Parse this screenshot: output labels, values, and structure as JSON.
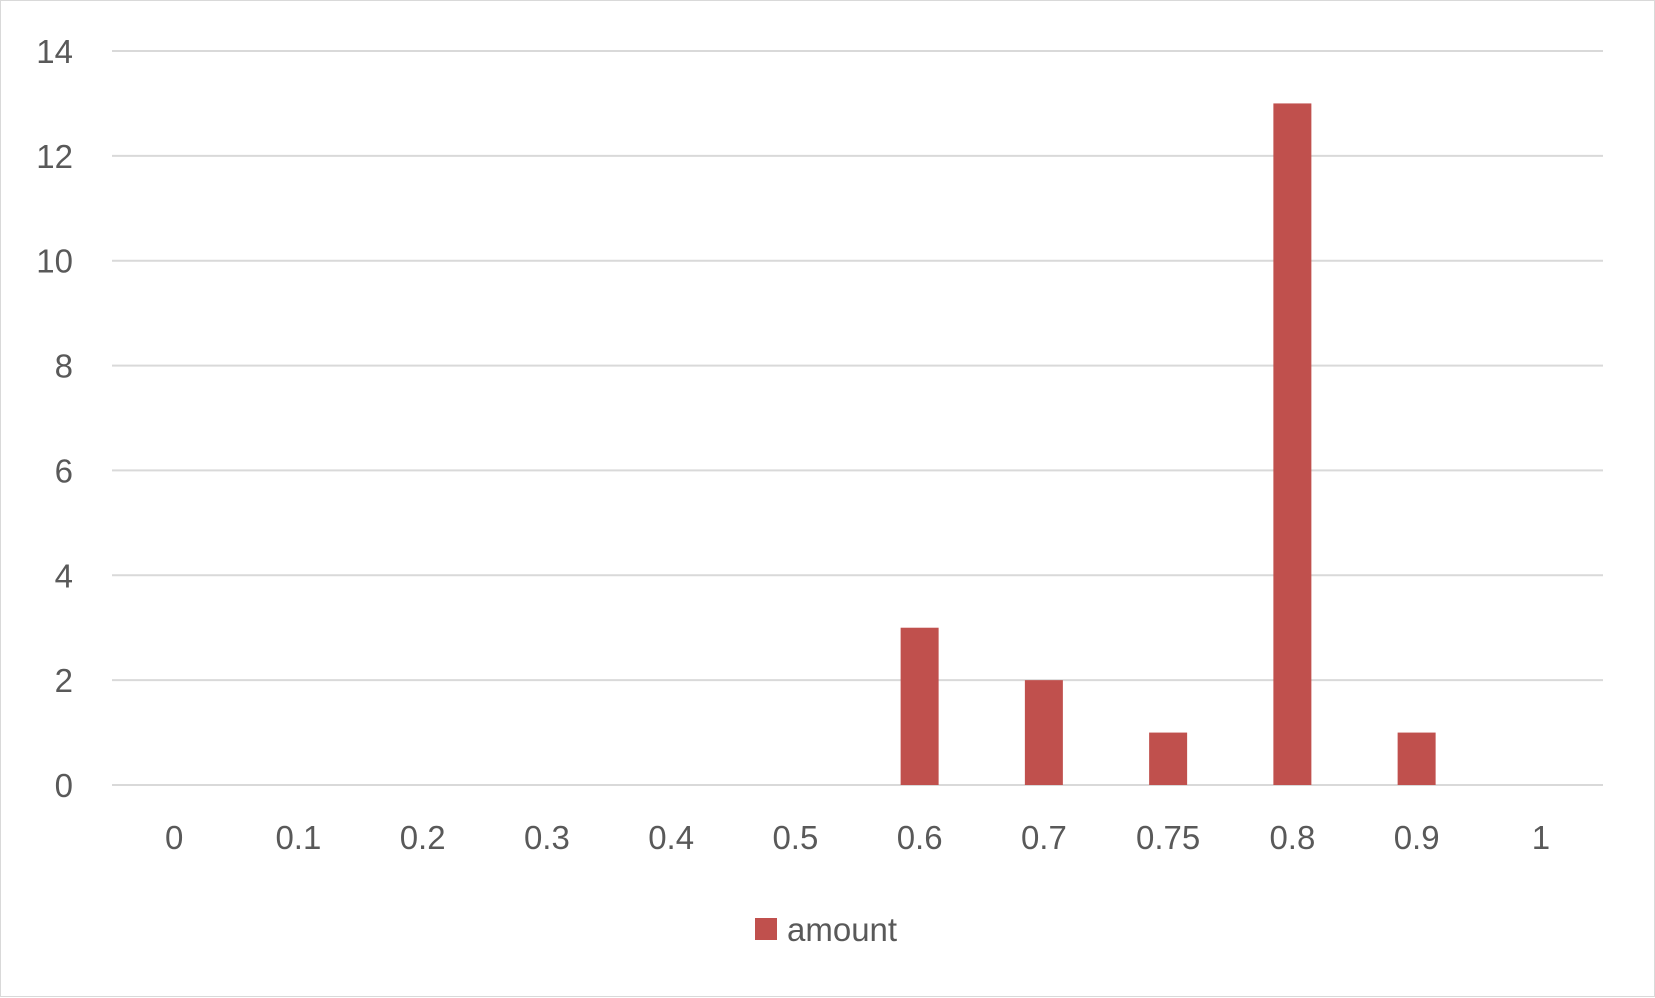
{
  "chart_data": {
    "type": "bar",
    "categories": [
      "0",
      "0.1",
      "0.2",
      "0.3",
      "0.4",
      "0.5",
      "0.6",
      "0.7",
      "0.75",
      "0.8",
      "0.9",
      "1"
    ],
    "series": [
      {
        "name": "amount",
        "color": "#c0504d",
        "values": [
          0,
          0,
          0,
          0,
          0,
          0,
          3,
          2,
          1,
          13,
          1,
          0
        ]
      }
    ],
    "title": "",
    "xlabel": "",
    "ylabel": "",
    "ylim": [
      0,
      14
    ],
    "yticks": [
      "0",
      "2",
      "4",
      "6",
      "8",
      "10",
      "12",
      "14"
    ],
    "grid": true,
    "legend_position": "bottom"
  }
}
